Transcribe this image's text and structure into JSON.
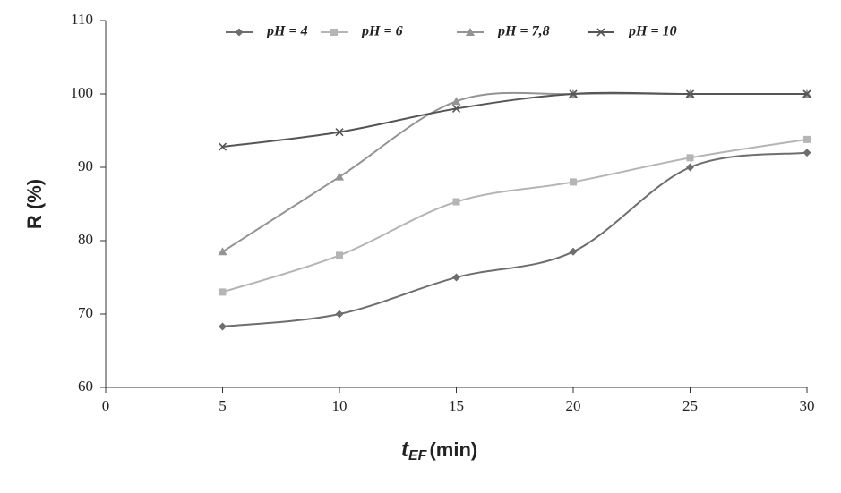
{
  "chart_data": {
    "type": "line",
    "x_label": {
      "main": "t",
      "subscript": "EF",
      "unit": "(min)"
    },
    "y_label": "R (%)",
    "x": [
      5,
      10,
      15,
      20,
      25,
      30
    ],
    "series": [
      {
        "name": "pH = 4",
        "color": "#6e6e6e",
        "marker": "diamond",
        "values": [
          68.3,
          70,
          75,
          78.5,
          90,
          92
        ]
      },
      {
        "name": "pH = 6",
        "color": "#b5b5b5",
        "marker": "square",
        "values": [
          73,
          78,
          85.3,
          88,
          91.3,
          93.8
        ]
      },
      {
        "name": "pH = 7,8",
        "color": "#949494",
        "marker": "triangle",
        "values": [
          78.5,
          88.7,
          99,
          100,
          100,
          100
        ]
      },
      {
        "name": "pH = 10",
        "color": "#555555",
        "marker": "cross",
        "values": [
          92.8,
          94.8,
          98,
          100,
          100,
          100
        ]
      }
    ],
    "xlim": [
      0,
      30
    ],
    "xticks": [
      0,
      5,
      10,
      15,
      20,
      25,
      30
    ],
    "ylim": [
      60,
      110
    ],
    "yticks": [
      60,
      70,
      80,
      90,
      100,
      110
    ],
    "smooth": true,
    "grid": false,
    "legend": "top"
  }
}
